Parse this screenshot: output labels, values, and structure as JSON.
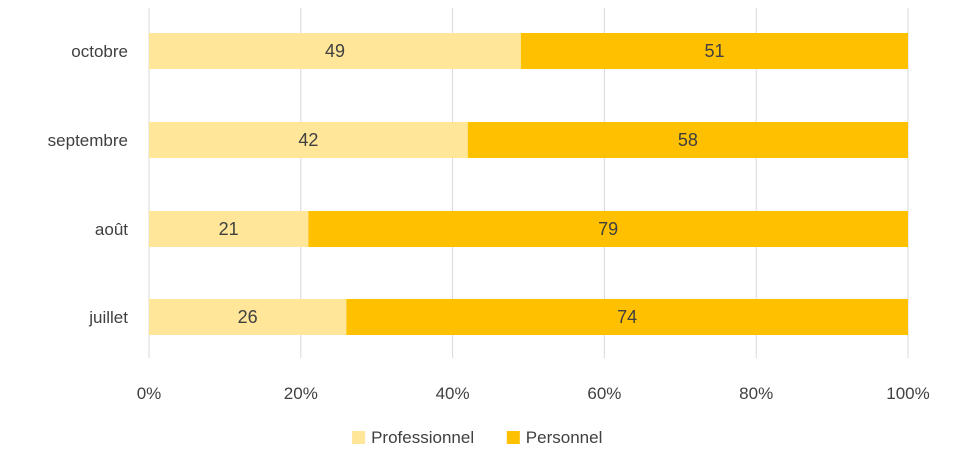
{
  "chart_data": {
    "type": "bar",
    "orientation": "horizontal",
    "stacked": "percent",
    "categories": [
      "octobre",
      "septembre",
      "août",
      "juillet"
    ],
    "series": [
      {
        "name": "Professionnel",
        "color": "#FFE699",
        "values": [
          49,
          42,
          21,
          26
        ]
      },
      {
        "name": "Personnel",
        "color": "#FFC000",
        "values": [
          51,
          58,
          79,
          74
        ]
      }
    ],
    "xlim": [
      0,
      100
    ],
    "xticks": [
      "0%",
      "20%",
      "40%",
      "60%",
      "80%",
      "100%"
    ],
    "grid": true,
    "legend": "bottom"
  }
}
